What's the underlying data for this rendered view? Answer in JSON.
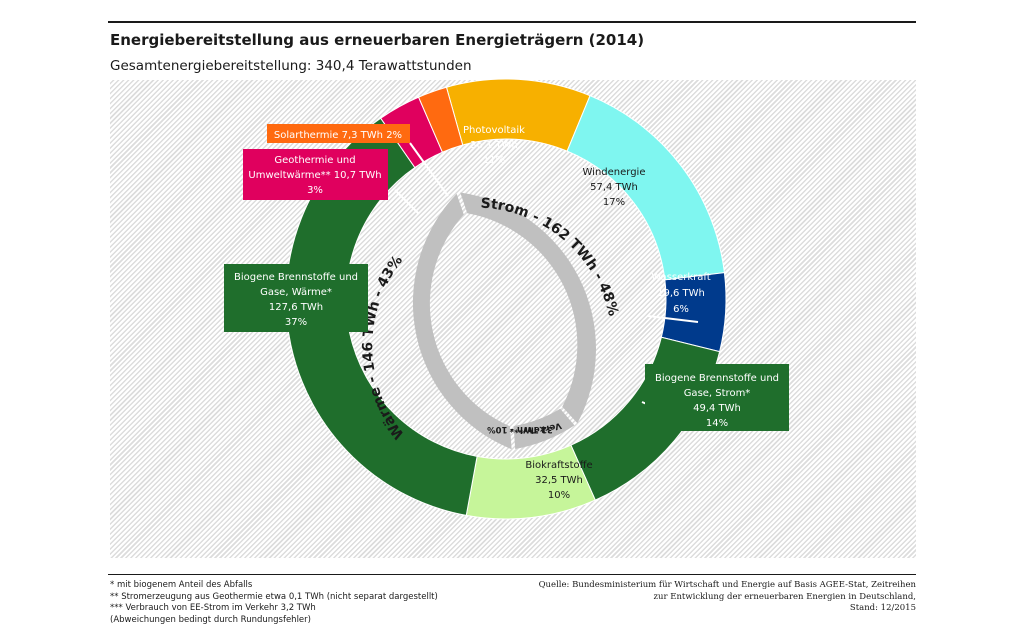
{
  "title": "Energiebereitstellung aus erneuerbaren Energieträgern (2014)",
  "subtitle": "Gesamtenergiebereitstellung: 340,4 Terawattstunden",
  "chart_data": {
    "type": "pie",
    "variant": "donut-two-ring",
    "outer_ring": [
      {
        "name": "Photovoltaik",
        "value": 36.1,
        "value_label": "36,1 TWh",
        "percent": "11%",
        "color": "#f7b000",
        "text_color": "#ffffff"
      },
      {
        "name": "Windenergie",
        "value": 57.4,
        "value_label": "57,4 TWh",
        "percent": "17%",
        "color": "#7ff6f0",
        "text_color": "#1a1a1a"
      },
      {
        "name": "Wasserkraft",
        "value": 19.6,
        "value_label": "19,6 TWh",
        "percent": "6%",
        "color": "#003a8c",
        "text_color": "#ffffff"
      },
      {
        "name": "Biogene Brennstoffe und Gase, Strom*",
        "value": 49.4,
        "value_label": "49,4 TWh",
        "percent": "14%",
        "color": "#1f6e2c",
        "text_color": "#ffffff"
      },
      {
        "name": "Biokraftstoffe",
        "value": 32.5,
        "value_label": "32,5 TWh",
        "percent": "10%",
        "color": "#c6f59a",
        "text_color": "#1a1a1a"
      },
      {
        "name": "Biogene Brennstoffe und Gase, Wärme*",
        "value": 127.6,
        "value_label": "127,6 TWh",
        "percent": "37%",
        "color": "#1f6e2c",
        "text_color": "#ffffff"
      },
      {
        "name": "Geothermie und Umweltwärme**",
        "value": 10.7,
        "value_label": "10,7 TWh",
        "percent": "3%",
        "color": "#e0005e",
        "text_color": "#ffffff"
      },
      {
        "name": "Solarthermie",
        "value": 7.3,
        "value_label": "7,3 TWh",
        "percent": "2%",
        "color": "#ff6a10",
        "text_color": "#ffffff"
      }
    ],
    "inner_ring": [
      {
        "label": "Strom - 162 TWh - 48%",
        "value": 162
      },
      {
        "label": "Verkehr*** 32 TWh - 10%",
        "value": 32
      },
      {
        "label": "Wärme - 146 TWh - 43%",
        "value": 146
      }
    ],
    "box_labels": {
      "solarthermie": "Solarthermie 7,3 TWh 2%",
      "geothermie_1": "Geothermie und",
      "geothermie_2": "Umweltwärme** 10,7 TWh",
      "geothermie_3": "3%",
      "pv_1": "Photovoltaik",
      "pv_2": "36,1 TWh",
      "pv_3": "11%",
      "wind_1": "Windenergie",
      "wind_2": "57,4 TWh",
      "wind_3": "17%",
      "wasser_1": "Wasserkraft",
      "wasser_2": "19,6 TWh",
      "wasser_3": "6%",
      "biostrom_1": "Biogene Brennstoffe und",
      "biostrom_2": "Gase, Strom*",
      "biostrom_3": "49,4 TWh",
      "biostrom_4": "14%",
      "biokraft_1": "Biokraftstoffe",
      "biokraft_2": "32,5 TWh",
      "biokraft_3": "10%",
      "biowaerme_1": "Biogene Brennstoffe und",
      "biowaerme_2": "Gase, Wärme*",
      "biowaerme_3": "127,6 TWh",
      "biowaerme_4": "37%",
      "verkehr_1": "Verkehr***",
      "verkehr_2": "32 TWh - 10%"
    }
  },
  "footnotes": [
    "* mit biogenem Anteil des Abfalls",
    "** Stromerzeugung aus Geothermie etwa 0,1 TWh (nicht separat dargestellt)",
    "*** Verbrauch von EE-Strom im Verkehr 3,2 TWh",
    "(Abweichungen bedingt durch Rundungsfehler)"
  ],
  "source": [
    "Quelle: Bundesministerium für Wirtschaft und Energie auf Basis AGEE-Stat, Zeitreihen",
    "zur Entwicklung der erneuerbaren Energien in Deutschland,",
    "Stand: 12/2015"
  ]
}
